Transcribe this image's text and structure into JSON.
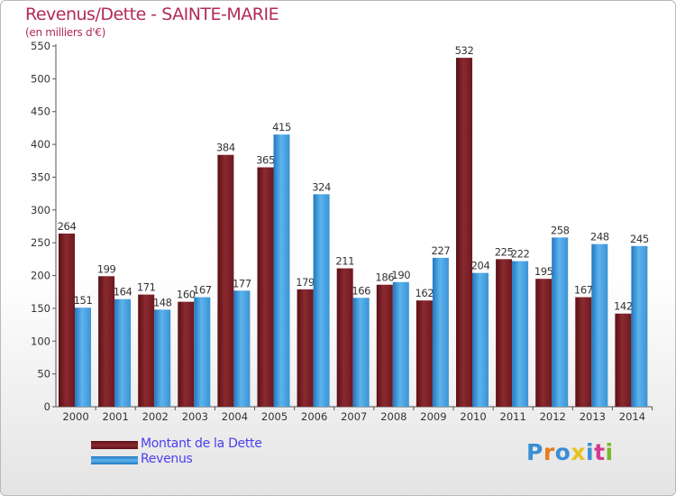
{
  "header": {
    "title": "Revenus/Dette - SAINTE-MARIE",
    "subtitle": "(en milliers d'€)"
  },
  "chart_data": {
    "type": "bar",
    "title": "Revenus/Dette - SAINTE-MARIE",
    "ylabel": "(en milliers d'€)",
    "xlabel": "",
    "ylim": [
      0,
      550
    ],
    "yticks": [
      0,
      50,
      100,
      150,
      200,
      250,
      300,
      350,
      400,
      450,
      500,
      550
    ],
    "grid": false,
    "legend_position": "bottom-left",
    "categories": [
      "2000",
      "2001",
      "2002",
      "2003",
      "2004",
      "2005",
      "2006",
      "2007",
      "2008",
      "2009",
      "2010",
      "2011",
      "2012",
      "2013",
      "2014"
    ],
    "series": [
      {
        "name": "Montant de la Dette",
        "color": "#7a1a22",
        "values": [
          264,
          199,
          171,
          160,
          384,
          365,
          179,
          211,
          186,
          162,
          532,
          225,
          195,
          167,
          142
        ]
      },
      {
        "name": "Revenus",
        "color": "#3e98d9",
        "values": [
          151,
          164,
          148,
          167,
          177,
          415,
          324,
          166,
          190,
          227,
          204,
          222,
          258,
          248,
          245
        ]
      }
    ]
  },
  "logo": {
    "letters": [
      "P",
      "r",
      "o",
      "x",
      "i",
      "t",
      "i"
    ],
    "colors": [
      "#3a8fd4",
      "#e87d1e",
      "#3a8fd4",
      "#e8c21e",
      "#3a8fd4",
      "#d43a8f",
      "#7ab82a"
    ]
  }
}
